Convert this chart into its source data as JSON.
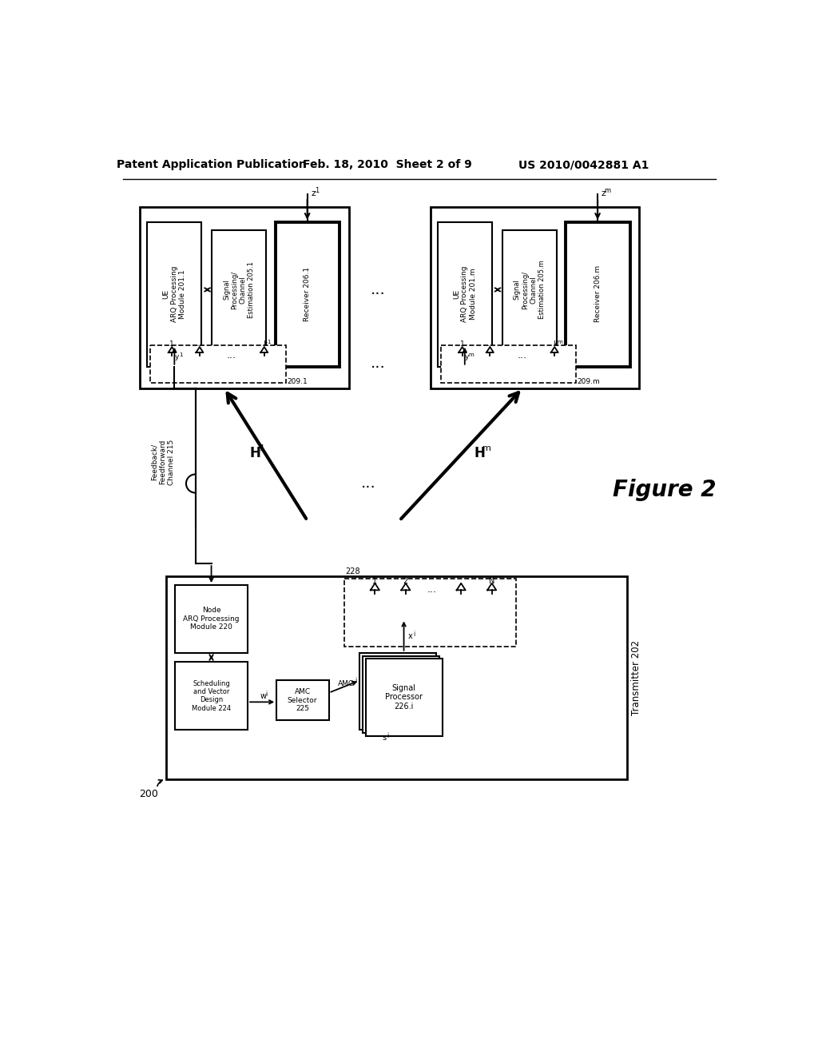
{
  "bg_color": "#ffffff",
  "header_left": "Patent Application Publication",
  "header_mid": "Feb. 18, 2010  Sheet 2 of 9",
  "header_right": "US 2010/0042881 A1",
  "figure_label": "Figure 2",
  "figure_number": "200"
}
